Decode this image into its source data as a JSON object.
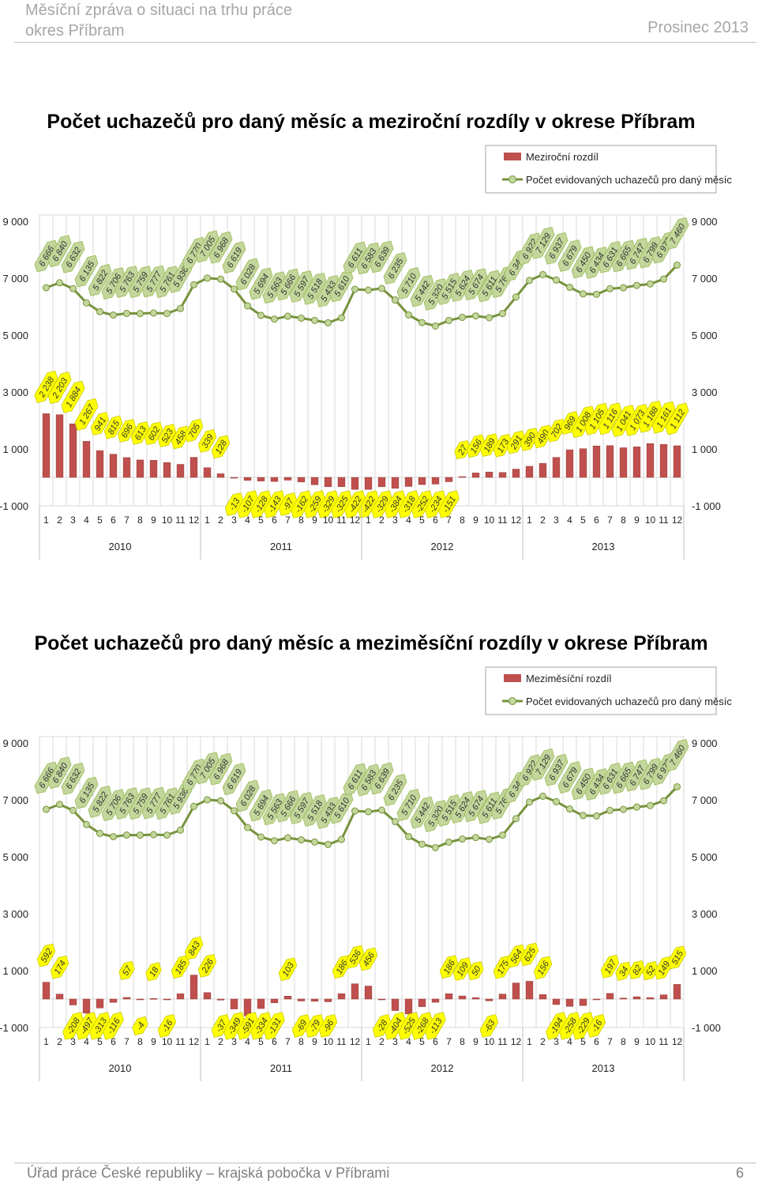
{
  "header": {
    "line1": "Měsíční zpráva o situaci na trhu práce",
    "line2": "okres Příbram",
    "date": "Prosinec 2013"
  },
  "footer": {
    "text": "Úřad práce České republiky – krajská pobočka v Příbrami",
    "page": "6"
  },
  "colors": {
    "bar": "#c0504d",
    "line": "#76933c",
    "marker": "#c3d69b",
    "label_yellow": "#ffff00",
    "label_green": "#c3d69b",
    "grid": "#d9d9d9"
  },
  "chart_data": [
    {
      "type": "bar+line",
      "title": "Počet uchazečů pro daný měsíc a meziroční rozdíly v okrese Příbram",
      "legend": [
        "Meziroční rozdíl",
        "Počet evidovaných uchazečů pro daný měsíc"
      ],
      "legend_position": "top-right",
      "ylim": [
        -1000,
        9000
      ],
      "y_ticks": [
        "9 000",
        "7 000",
        "5 000",
        "3 000",
        "1 000",
        "-1 000"
      ],
      "grid": true,
      "months": [
        "1",
        "2",
        "3",
        "4",
        "5",
        "6",
        "7",
        "8",
        "9",
        "10",
        "11",
        "12",
        "1",
        "2",
        "3",
        "4",
        "5",
        "6",
        "7",
        "8",
        "9",
        "10",
        "11",
        "12",
        "1",
        "2",
        "3",
        "4",
        "5",
        "6",
        "7",
        "8",
        "9",
        "10",
        "11",
        "12",
        "1",
        "2",
        "3",
        "4",
        "5",
        "6",
        "7",
        "8",
        "9",
        "10",
        "11",
        "12"
      ],
      "years": [
        "2010",
        "2011",
        "2012",
        "2013"
      ],
      "series": [
        {
          "name": "Počet evidovaných uchazečů pro daný měsíc",
          "values": [
            6666,
            6840,
            6632,
            6135,
            5822,
            5706,
            5763,
            5759,
            5777,
            5761,
            5936,
            6770,
            7005,
            6968,
            6619,
            6028,
            5694,
            5563,
            5666,
            5597,
            5518,
            5433,
            5610,
            6611,
            6583,
            6639,
            6235,
            5710,
            5442,
            5320,
            5515,
            5624,
            5674,
            5611,
            5760,
            6340,
            6922,
            7129,
            6937,
            6679,
            6450,
            6434,
            6631,
            6665,
            6747,
            6799,
            6970,
            7460
          ]
        },
        {
          "name": "Meziroční rozdíl",
          "values": [
            2238,
            2203,
            1884,
            1267,
            941,
            815,
            696,
            613,
            602,
            523,
            458,
            705,
            339,
            128,
            -13,
            -107,
            -128,
            -143,
            -97,
            -162,
            -259,
            -329,
            -325,
            -422,
            -422,
            -329,
            -384,
            -318,
            -252,
            -234,
            -151,
            27,
            156,
            189,
            173,
            291,
            390,
            490,
            702,
            969,
            1008,
            1105,
            1116,
            1041,
            1073,
            1188,
            1161,
            1112
          ]
        }
      ]
    },
    {
      "type": "bar+line",
      "title": "Počet uchazečů pro daný měsíc a meziměsíční rozdíly v okrese Příbram",
      "legend": [
        "Meziměsíční rozdíl",
        "Počet evidovaných uchazečů pro daný měsíc"
      ],
      "legend_position": "top-right",
      "ylim": [
        -1000,
        9000
      ],
      "y_ticks": [
        "9 000",
        "7 000",
        "5 000",
        "3 000",
        "1 000",
        "-1 000"
      ],
      "grid": true,
      "months": [
        "1",
        "2",
        "3",
        "4",
        "5",
        "6",
        "7",
        "8",
        "9",
        "10",
        "11",
        "12",
        "1",
        "2",
        "3",
        "4",
        "5",
        "6",
        "7",
        "8",
        "9",
        "10",
        "11",
        "12",
        "1",
        "2",
        "3",
        "4",
        "5",
        "6",
        "7",
        "8",
        "9",
        "10",
        "11",
        "12",
        "1",
        "2",
        "3",
        "4",
        "5",
        "6",
        "7",
        "8",
        "9",
        "10",
        "11",
        "12"
      ],
      "years": [
        "2010",
        "2011",
        "2012",
        "2013"
      ],
      "series": [
        {
          "name": "Počet evidovaných uchazečů pro daný měsíc",
          "values": [
            6666,
            6840,
            6632,
            6135,
            5822,
            5706,
            5763,
            5759,
            5777,
            5761,
            5936,
            6770,
            7005,
            6968,
            6619,
            6028,
            5694,
            5563,
            5666,
            5597,
            5518,
            5433,
            5610,
            6611,
            6583,
            6639,
            6235,
            5710,
            5442,
            5320,
            5515,
            5624,
            5674,
            5611,
            5760,
            6340,
            6922,
            7129,
            6937,
            6679,
            6450,
            6434,
            6631,
            6665,
            6747,
            6799,
            6970,
            7460
          ]
        },
        {
          "name": "Meziměsíční rozdíl",
          "values": [
            592,
            174,
            -208,
            -497,
            -313,
            -116,
            57,
            -4,
            18,
            -16,
            185,
            843,
            226,
            -37,
            -349,
            -591,
            -334,
            -131,
            103,
            -69,
            -79,
            -96,
            186,
            536,
            456,
            -28,
            -404,
            -525,
            -268,
            -113,
            186,
            109,
            50,
            -63,
            175,
            564,
            625,
            156,
            -194,
            -258,
            -229,
            -16,
            197,
            34,
            82,
            52,
            149,
            515
          ]
        }
      ]
    }
  ]
}
